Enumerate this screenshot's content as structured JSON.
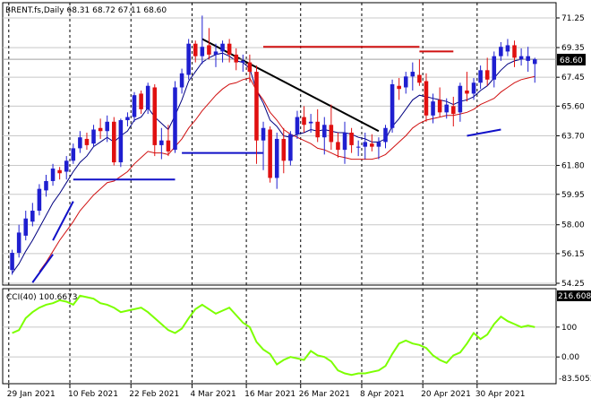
{
  "header": {
    "symbol_line": "BRENT.fs,Daily  68.31 68.72 67.11 68.60"
  },
  "price_panel": {
    "current_price_label": "68.60"
  },
  "cci_panel": {
    "title": "CCI(40) 100.6673",
    "current_label": "216.608",
    "min_label": "-83.5053"
  },
  "colors": {
    "bull": "#1f1fd0",
    "bear": "#e01010",
    "ema_fast": "#000080",
    "ema_slow": "#d01010",
    "support_line": "#1010c8",
    "resistance_line": "#d01010",
    "trendline": "#000000",
    "cci_line": "#7cff00",
    "price_bg": "#000000"
  },
  "chart_data": [
    {
      "type": "candlestick",
      "title": "BRENT.fs,Daily",
      "header_values": {
        "open": 68.31,
        "high": 68.72,
        "low": 67.11,
        "close": 68.6
      },
      "y_ticks": [
        71.25,
        69.35,
        67.45,
        65.6,
        63.7,
        61.8,
        59.95,
        58.0,
        56.15,
        54.25
      ],
      "ylim": [
        54.25,
        71.25
      ],
      "x_ticks": [
        "29 Jan 2021",
        "10 Feb 2021",
        "22 Feb 2021",
        "4 Mar 2021",
        "16 Mar 2021",
        "26 Mar 2021",
        "8 Apr 2021",
        "20 Apr 2021",
        "30 Apr 2021"
      ],
      "x_tick_index": [
        0,
        9,
        18,
        27,
        35,
        43,
        52,
        61,
        69
      ],
      "grid": true,
      "candles": [
        [
          55.1,
          56.4,
          54.8,
          56.2
        ],
        [
          56.2,
          58.0,
          55.9,
          57.5
        ],
        [
          57.3,
          58.9,
          57.0,
          58.4
        ],
        [
          58.2,
          59.4,
          57.9,
          58.9
        ],
        [
          58.9,
          60.6,
          58.6,
          60.3
        ],
        [
          60.2,
          61.2,
          59.8,
          60.8
        ],
        [
          60.8,
          61.9,
          60.5,
          61.6
        ],
        [
          61.5,
          61.7,
          60.9,
          61.3
        ],
        [
          61.4,
          62.4,
          60.9,
          62.1
        ],
        [
          62.1,
          63.2,
          61.9,
          62.9
        ],
        [
          62.9,
          64.0,
          62.6,
          63.6
        ],
        [
          63.5,
          63.9,
          62.8,
          63.1
        ],
        [
          63.2,
          64.4,
          63.0,
          64.1
        ],
        [
          64.2,
          64.8,
          63.5,
          64.0
        ],
        [
          64.0,
          65.0,
          63.3,
          64.6
        ],
        [
          64.6,
          64.9,
          61.8,
          62.0
        ],
        [
          62.0,
          64.8,
          61.7,
          64.7
        ],
        [
          64.7,
          65.2,
          64.3,
          64.9
        ],
        [
          64.9,
          66.5,
          64.6,
          66.3
        ],
        [
          66.4,
          66.6,
          65.1,
          65.4
        ],
        [
          65.4,
          67.1,
          65.1,
          66.9
        ],
        [
          66.8,
          67.0,
          62.4,
          63.1
        ],
        [
          63.1,
          64.2,
          62.2,
          63.4
        ],
        [
          63.4,
          64.4,
          62.4,
          62.7
        ],
        [
          62.8,
          67.2,
          62.6,
          66.8
        ],
        [
          66.8,
          68.0,
          66.4,
          67.7
        ],
        [
          67.6,
          69.9,
          67.3,
          69.6
        ],
        [
          69.6,
          69.8,
          68.4,
          68.8
        ],
        [
          68.8,
          71.4,
          68.3,
          69.4
        ],
        [
          69.5,
          70.6,
          68.6,
          68.9
        ],
        [
          68.9,
          69.6,
          68.1,
          69.1
        ],
        [
          69.1,
          69.8,
          68.4,
          69.6
        ],
        [
          69.6,
          69.9,
          68.4,
          68.9
        ],
        [
          68.9,
          69.3,
          67.9,
          68.4
        ],
        [
          68.4,
          68.9,
          67.8,
          68.5
        ],
        [
          68.4,
          68.9,
          67.1,
          67.8
        ],
        [
          67.8,
          68.2,
          61.9,
          63.4
        ],
        [
          63.4,
          64.6,
          61.5,
          64.2
        ],
        [
          64.1,
          64.3,
          60.7,
          61.0
        ],
        [
          61.0,
          63.9,
          60.3,
          63.5
        ],
        [
          63.5,
          64.2,
          61.3,
          62.1
        ],
        [
          62.1,
          64.0,
          61.8,
          63.8
        ],
        [
          63.8,
          65.3,
          63.5,
          64.9
        ],
        [
          64.9,
          65.6,
          63.9,
          64.4
        ],
        [
          64.5,
          65.1,
          63.9,
          64.6
        ],
        [
          64.6,
          65.4,
          63.3,
          63.6
        ],
        [
          63.6,
          64.9,
          62.5,
          64.4
        ],
        [
          64.4,
          65.7,
          62.8,
          63.3
        ],
        [
          63.3,
          63.9,
          62.3,
          62.8
        ],
        [
          62.8,
          64.6,
          61.9,
          63.9
        ],
        [
          63.9,
          64.2,
          62.6,
          63.1
        ],
        [
          63.0,
          63.4,
          62.4,
          63.0
        ],
        [
          63.0,
          63.9,
          62.2,
          63.3
        ],
        [
          63.2,
          63.8,
          62.7,
          63.0
        ],
        [
          63.0,
          63.6,
          62.2,
          63.3
        ],
        [
          63.3,
          64.4,
          62.9,
          64.2
        ],
        [
          64.2,
          67.3,
          63.9,
          67.0
        ],
        [
          66.9,
          67.4,
          66.0,
          66.7
        ],
        [
          66.8,
          67.8,
          66.4,
          67.5
        ],
        [
          67.5,
          68.4,
          66.6,
          67.8
        ],
        [
          67.6,
          68.6,
          66.9,
          67.1
        ],
        [
          67.2,
          67.7,
          64.6,
          65.0
        ],
        [
          65.0,
          66.4,
          64.5,
          65.9
        ],
        [
          66.0,
          66.8,
          64.9,
          65.2
        ],
        [
          65.2,
          66.1,
          64.8,
          65.7
        ],
        [
          65.6,
          66.2,
          64.3,
          65.1
        ],
        [
          65.2,
          67.1,
          64.6,
          66.9
        ],
        [
          66.6,
          67.8,
          65.9,
          66.4
        ],
        [
          66.4,
          67.4,
          66.0,
          67.1
        ],
        [
          67.1,
          68.2,
          66.7,
          67.9
        ],
        [
          67.9,
          68.7,
          66.9,
          67.3
        ],
        [
          67.3,
          69.1,
          66.8,
          68.8
        ],
        [
          68.8,
          69.7,
          68.5,
          69.4
        ],
        [
          69.1,
          69.9,
          68.8,
          69.5
        ],
        [
          69.5,
          69.8,
          68.1,
          68.7
        ],
        [
          68.6,
          69.3,
          68.2,
          68.8
        ],
        [
          68.5,
          69.4,
          67.8,
          68.8
        ],
        [
          68.3,
          68.7,
          67.1,
          68.6
        ]
      ],
      "ema_fast": [
        54.9,
        55.5,
        56.3,
        57.0,
        57.8,
        58.6,
        59.4,
        60.0,
        60.7,
        61.4,
        62.0,
        62.4,
        63.0,
        63.3,
        63.6,
        63.3,
        63.7,
        64.0,
        64.7,
        64.9,
        65.5,
        64.9,
        64.5,
        64.1,
        65.0,
        66.0,
        67.2,
        67.8,
        68.4,
        68.7,
        68.9,
        69.0,
        68.8,
        68.5,
        68.4,
        68.0,
        66.6,
        65.8,
        64.7,
        64.3,
        63.7,
        63.6,
        63.8,
        63.9,
        64.1,
        64.0,
        64.1,
        64.0,
        63.9,
        63.9,
        63.8,
        63.6,
        63.5,
        63.3,
        63.3,
        63.5,
        64.3,
        64.8,
        65.4,
        66.0,
        66.3,
        66.2,
        66.1,
        66.0,
        65.9,
        65.7,
        65.9,
        66.0,
        66.2,
        66.6,
        66.9,
        67.4,
        67.9,
        68.3,
        68.5,
        68.6,
        68.6,
        68.6
      ],
      "ema_slow": [
        null,
        null,
        null,
        null,
        55.0,
        55.6,
        56.3,
        57.0,
        57.6,
        58.2,
        58.9,
        59.4,
        59.9,
        60.3,
        60.7,
        60.8,
        61.1,
        61.4,
        61.9,
        62.3,
        62.7,
        62.6,
        62.6,
        62.5,
        63.0,
        63.5,
        64.2,
        64.7,
        65.3,
        65.8,
        66.3,
        66.7,
        67.0,
        67.1,
        67.3,
        67.4,
        66.6,
        66.0,
        65.2,
        64.7,
        64.1,
        63.8,
        63.6,
        63.4,
        63.2,
        62.9,
        62.8,
        62.6,
        62.4,
        62.3,
        62.2,
        62.2,
        62.2,
        62.2,
        62.3,
        62.5,
        62.9,
        63.3,
        63.7,
        64.2,
        64.5,
        64.7,
        64.8,
        64.9,
        65.0,
        65.0,
        65.1,
        65.2,
        65.4,
        65.7,
        65.9,
        66.1,
        66.5,
        66.8,
        67.1,
        67.3,
        67.4,
        67.5
      ],
      "support_segments": [
        {
          "x": [
            3,
            6
          ],
          "y": [
            54.3,
            56.1
          ]
        },
        {
          "x": [
            6,
            9
          ],
          "y": [
            57.0,
            59.5
          ]
        },
        {
          "x": [
            9,
            24
          ],
          "y": [
            60.9,
            60.9
          ]
        },
        {
          "x": [
            25,
            37
          ],
          "y": [
            62.6,
            62.6
          ]
        },
        {
          "x": [
            67,
            72
          ],
          "y": [
            63.7,
            64.1
          ]
        }
      ],
      "resistance_segments": [
        {
          "x": [
            37,
            60
          ],
          "y": [
            69.4,
            69.4
          ]
        },
        {
          "x": [
            60,
            65
          ],
          "y": [
            69.1,
            69.1
          ]
        }
      ],
      "trendline": {
        "x": [
          28,
          54
        ],
        "y": [
          69.9,
          64.0
        ]
      },
      "current_price": 68.6
    },
    {
      "type": "line",
      "title": "CCI(40) 100.6673",
      "y_ticks": [
        216.608,
        100,
        0.0,
        -83.5053
      ],
      "ylim": [
        -83.5053,
        216.608
      ],
      "series": [
        {
          "name": "CCI(40)",
          "values": [
            80,
            90,
            130,
            150,
            165,
            175,
            180,
            190,
            185,
            175,
            205,
            200,
            195,
            180,
            175,
            165,
            150,
            155,
            160,
            165,
            150,
            130,
            110,
            90,
            80,
            95,
            130,
            160,
            175,
            160,
            145,
            155,
            165,
            140,
            115,
            100,
            50,
            25,
            10,
            -25,
            -10,
            0,
            -5,
            -10,
            20,
            5,
            0,
            -15,
            -45,
            -55,
            -60,
            -55,
            -55,
            -50,
            -45,
            -30,
            10,
            45,
            55,
            45,
            40,
            30,
            5,
            -10,
            -20,
            5,
            15,
            45,
            80,
            60,
            75,
            110,
            135,
            120,
            110,
            100,
            105,
            100
          ]
        }
      ]
    }
  ]
}
